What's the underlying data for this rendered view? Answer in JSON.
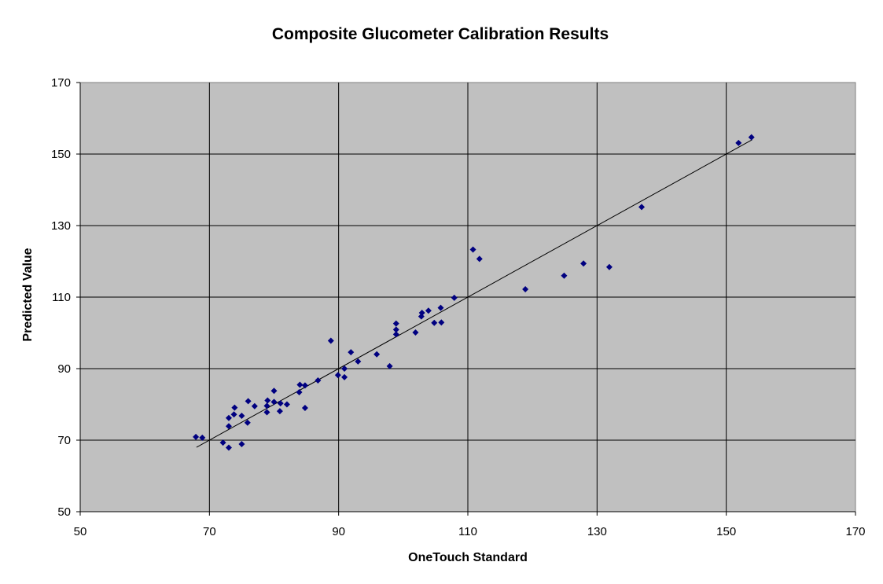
{
  "chart_data": {
    "type": "scatter",
    "title": "Composite Glucometer Calibration Results",
    "xlabel": "OneTouch Standard",
    "ylabel": "Predicted Value",
    "xlim": [
      50,
      170
    ],
    "ylim": [
      50,
      170
    ],
    "xticks": [
      50,
      70,
      90,
      110,
      130,
      150,
      170
    ],
    "yticks": [
      50,
      70,
      90,
      110,
      130,
      150,
      170
    ],
    "grid": true,
    "legend": "none",
    "colors": {
      "plot_background": "#c0c0c0",
      "gridline": "#000000",
      "marker": "#000080",
      "trendline": "#000000"
    },
    "trendline": {
      "x": [
        68,
        154
      ],
      "y": [
        68,
        154
      ]
    },
    "series": [
      {
        "points": [
          [
            67.9,
            70.9
          ],
          [
            68.9,
            70.7
          ],
          [
            72.1,
            69.3
          ],
          [
            73.0,
            67.9
          ],
          [
            73.0,
            73.9
          ],
          [
            73.0,
            76.2
          ],
          [
            73.8,
            77.2
          ],
          [
            73.9,
            79.1
          ],
          [
            75.0,
            68.9
          ],
          [
            75.0,
            76.8
          ],
          [
            75.9,
            74.9
          ],
          [
            76.0,
            80.9
          ],
          [
            77.0,
            79.5
          ],
          [
            78.9,
            77.8
          ],
          [
            78.9,
            79.6
          ],
          [
            79.0,
            81.1
          ],
          [
            80.0,
            80.7
          ],
          [
            80.0,
            83.8
          ],
          [
            80.9,
            78.1
          ],
          [
            81.0,
            80.3
          ],
          [
            82.0,
            80.0
          ],
          [
            83.9,
            83.4
          ],
          [
            84.0,
            85.5
          ],
          [
            84.8,
            85.3
          ],
          [
            84.8,
            79.0
          ],
          [
            86.8,
            86.7
          ],
          [
            88.8,
            97.8
          ],
          [
            89.9,
            88.2
          ],
          [
            90.9,
            87.6
          ],
          [
            90.9,
            90.0
          ],
          [
            91.9,
            94.6
          ],
          [
            93.0,
            92.0
          ],
          [
            95.9,
            94.0
          ],
          [
            97.9,
            90.7
          ],
          [
            98.9,
            99.6
          ],
          [
            98.9,
            100.9
          ],
          [
            98.9,
            102.6
          ],
          [
            101.9,
            100.1
          ],
          [
            102.8,
            104.6
          ],
          [
            102.9,
            105.6
          ],
          [
            103.9,
            106.2
          ],
          [
            104.8,
            102.8
          ],
          [
            105.8,
            107.0
          ],
          [
            105.9,
            102.9
          ],
          [
            107.9,
            109.8
          ],
          [
            110.8,
            123.3
          ],
          [
            111.8,
            120.7
          ],
          [
            118.9,
            112.2
          ],
          [
            124.9,
            116.0
          ],
          [
            127.9,
            119.4
          ],
          [
            131.9,
            118.4
          ],
          [
            136.9,
            135.2
          ],
          [
            151.9,
            153.1
          ],
          [
            153.9,
            154.7
          ]
        ]
      }
    ]
  }
}
